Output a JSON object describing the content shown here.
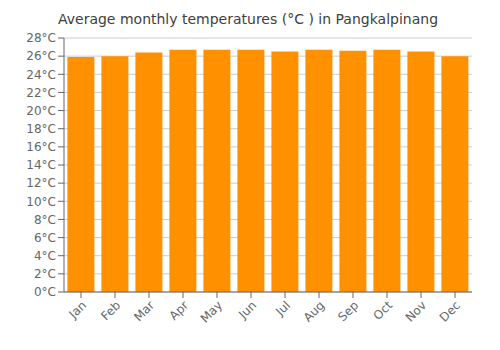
{
  "chart_data": {
    "type": "bar",
    "title": "Average monthly temperatures (°C ) in Pangkalpinang",
    "categories": [
      "Jan",
      "Feb",
      "Mar",
      "Apr",
      "May",
      "Jun",
      "Jul",
      "Aug",
      "Sep",
      "Oct",
      "Nov",
      "Dec"
    ],
    "values": [
      25.9,
      26.0,
      26.4,
      26.7,
      26.7,
      26.7,
      26.5,
      26.7,
      26.6,
      26.7,
      26.5,
      26.0
    ],
    "color": "#ff9000",
    "ylim": [
      0,
      28
    ],
    "yticks": [
      {
        "value": 0,
        "label": "0°C"
      },
      {
        "value": 2,
        "label": "2°C"
      },
      {
        "value": 4,
        "label": "4°C"
      },
      {
        "value": 6,
        "label": "6°C"
      },
      {
        "value": 8,
        "label": "8°C"
      },
      {
        "value": 10,
        "label": "10°C"
      },
      {
        "value": 12,
        "label": "12°C"
      },
      {
        "value": 14,
        "label": "14°C"
      },
      {
        "value": 16,
        "label": "16°C"
      },
      {
        "value": 18,
        "label": "18°C"
      },
      {
        "value": 20,
        "label": "20°C"
      },
      {
        "value": 22,
        "label": "22°C"
      },
      {
        "value": 24,
        "label": "24°C"
      },
      {
        "value": 26,
        "label": "26°C"
      },
      {
        "value": 28,
        "label": "28°C"
      }
    ],
    "grid": true
  }
}
